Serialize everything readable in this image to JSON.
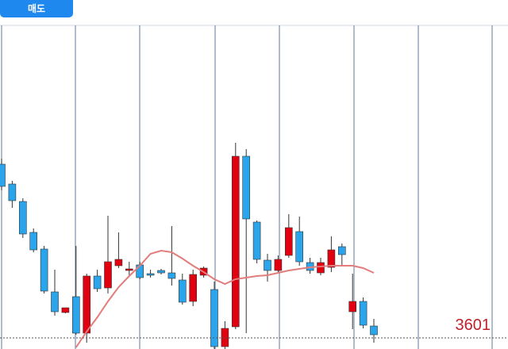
{
  "button": {
    "label": "매도"
  },
  "chart_data": {
    "type": "candlestick",
    "up_color": "#e0000f",
    "down_color": "#2aa4ea",
    "ma_color": "#e27d7d",
    "ylim": [
      3594,
      3800
    ],
    "current_price": 3601,
    "open": [
      3710.5,
      3698,
      3687,
      3667.5,
      3657,
      3630,
      3617,
      3627,
      3604,
      3640,
      3632.5,
      3646.5,
      3643.5,
      3647,
      3641.5,
      3643.5,
      3642,
      3637.5,
      3624,
      3640.5,
      3631.5,
      3595.5,
      3608,
      3715.5,
      3674,
      3650,
      3643.5,
      3653,
      3668,
      3648.5,
      3642,
      3645.5,
      3658.5,
      3617.5,
      3624,
      3608.5
    ],
    "high": [
      3714,
      3700,
      3689,
      3670,
      3659,
      3644,
      3620,
      3659,
      3641.5,
      3644,
      3678,
      3667.5,
      3649,
      3649,
      3644,
      3644.5,
      3671.5,
      3641.5,
      3644,
      3646,
      3636.5,
      3611.5,
      3724,
      3720,
      3675,
      3654,
      3653,
      3679,
      3677.5,
      3651.5,
      3651.5,
      3665,
      3660.5,
      3641.5,
      3626.5,
      3613
    ],
    "low": [
      3694,
      3683,
      3664,
      3655,
      3629,
      3615,
      3616.5,
      3603,
      3598,
      3630,
      3629,
      3645,
      3640,
      3638,
      3639,
      3641,
      3634,
      3622,
      3621,
      3639,
      3594,
      3594,
      3606.5,
      3604,
      3648,
      3636.5,
      3641.5,
      3651.5,
      3646.5,
      3641.5,
      3640.5,
      3642.5,
      3646.5,
      3606.5,
      3607,
      3598
    ],
    "close": [
      3696.5,
      3687.5,
      3666.5,
      3656.5,
      3630.5,
      3617.5,
      3620,
      3604,
      3640,
      3632,
      3649,
      3650.5,
      3644.5,
      3639,
      3640.5,
      3642,
      3638.5,
      3623.5,
      3641,
      3645,
      3595.5,
      3607,
      3715.5,
      3676,
      3650.5,
      3643.5,
      3650.5,
      3670.5,
      3649,
      3643.5,
      3648.5,
      3656.5,
      3653.5,
      3624,
      3609,
      3603
    ],
    "ma": [
      null,
      null,
      null,
      null,
      null,
      null,
      null,
      3595,
      3605,
      3614,
      3624,
      3633,
      3640,
      3646.5,
      3654,
      3656,
      3655,
      3651,
      3646.5,
      3642.5,
      3638,
      3635,
      3638,
      3639,
      3640,
      3640.5,
      3642,
      3643.5,
      3644.5,
      3645.5,
      3646,
      3646.5,
      3646.5,
      3646.5,
      3645,
      3642
    ]
  }
}
